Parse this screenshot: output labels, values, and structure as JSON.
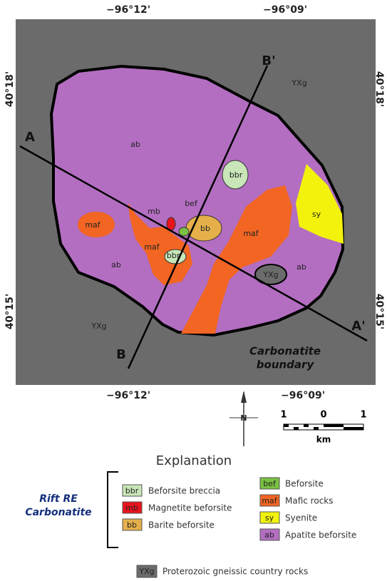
{
  "map": {
    "coordinates": {
      "top": [
        "−96°12'",
        "−96°09'"
      ],
      "bottom": [
        "−96°12'",
        "−96°09'"
      ],
      "left": [
        "40°18'",
        "40°15'"
      ],
      "right": [
        "40°18'",
        "40°15'"
      ]
    },
    "labels": [
      "ab",
      "ab",
      "ab",
      "maf",
      "maf",
      "maf",
      "bbr",
      "bbr",
      "mb",
      "bef",
      "bb",
      "sy",
      "YXg",
      "YXg",
      "YXg"
    ],
    "section_lines": [
      "A",
      "A'",
      "B",
      "B'"
    ],
    "boundary_label": [
      "Carbonatite",
      "boundary"
    ]
  },
  "north_arrow": "N",
  "scale": {
    "ticks": [
      "1",
      "0",
      "1"
    ],
    "unit": "km"
  },
  "explanation": {
    "title": "Explanation",
    "group": [
      "Rift RE",
      "Carbonatite"
    ],
    "items": [
      {
        "code": "bbr",
        "label": "Beforsite breccia"
      },
      {
        "code": "mb",
        "label": "Magnetite beforsite"
      },
      {
        "code": "bb",
        "label": "Barite beforsite"
      },
      {
        "code": "bef",
        "label": "Beforsite"
      },
      {
        "code": "maf",
        "label": "Mafic rocks"
      },
      {
        "code": "sy",
        "label": "Syenite"
      },
      {
        "code": "ab",
        "label": "Apatite beforsite"
      }
    ],
    "country_rock": {
      "code": "YXg",
      "label": "Proterozoic gneissic country rocks"
    }
  }
}
